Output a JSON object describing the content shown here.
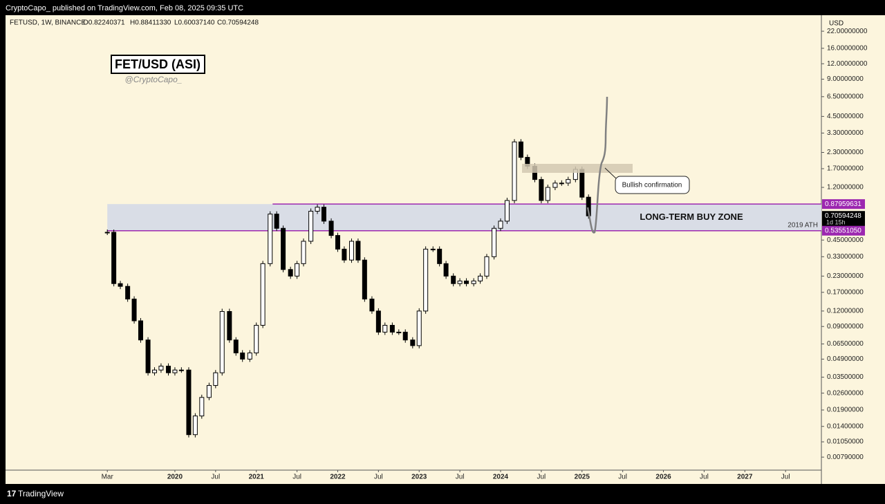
{
  "header": {
    "publisher": "CryptoCapo_ published on TradingView.com, Feb 08, 2025 09:35 UTC"
  },
  "symbol_line": {
    "symbol": "FETUSD, 1W, BINANCE",
    "open": "O0.82240371",
    "high": "H0.88411330",
    "low": "L0.60037140",
    "close": "C0.70594248"
  },
  "chart_data": {
    "type": "candlestick",
    "title": "FET/USD (ASI)",
    "subtitle": "@CryptoCapo_",
    "currency": "USD",
    "log_scale": true,
    "up_color": "#ffffff",
    "down_color": "#000000",
    "x": [
      2019.17,
      2019.25,
      2019.33,
      2019.42,
      2019.5,
      2019.58,
      2019.67,
      2019.75,
      2019.83,
      2019.92,
      2020,
      2020.08,
      2020.17,
      2020.25,
      2020.33,
      2020.42,
      2020.5,
      2020.58,
      2020.67,
      2020.75,
      2020.83,
      2020.92,
      2021,
      2021.08,
      2021.17,
      2021.25,
      2021.33,
      2021.42,
      2021.5,
      2021.58,
      2021.67,
      2021.75,
      2021.83,
      2021.92,
      2022,
      2022.08,
      2022.17,
      2022.25,
      2022.33,
      2022.42,
      2022.5,
      2022.58,
      2022.67,
      2022.75,
      2022.83,
      2022.92,
      2023,
      2023.08,
      2023.17,
      2023.25,
      2023.33,
      2023.42,
      2023.5,
      2023.58,
      2023.67,
      2023.75,
      2023.83,
      2023.92,
      2024,
      2024.08,
      2024.17,
      2024.25,
      2024.33,
      2024.42,
      2024.5,
      2024.58,
      2024.67,
      2024.75,
      2024.83,
      2024.92,
      2025,
      2025.08
    ],
    "values": [
      0.52,
      0.2,
      0.19,
      0.15,
      0.1,
      0.07,
      0.038,
      0.04,
      0.043,
      0.038,
      0.04,
      0.04,
      0.012,
      0.017,
      0.024,
      0.03,
      0.038,
      0.119,
      0.07,
      0.055,
      0.049,
      0.055,
      0.092,
      0.29,
      0.73,
      0.56,
      0.26,
      0.23,
      0.29,
      0.44,
      0.77,
      0.83,
      0.64,
      0.49,
      0.38,
      0.31,
      0.44,
      0.31,
      0.15,
      0.12,
      0.081,
      0.092,
      0.081,
      0.081,
      0.07,
      0.063,
      0.12,
      0.38,
      0.38,
      0.29,
      0.23,
      0.2,
      0.21,
      0.2,
      0.21,
      0.23,
      0.33,
      0.56,
      0.64,
      0.94,
      2.8,
      2.1,
      1.78,
      1.39,
      0.94,
      1.2,
      1.3,
      1.3,
      1.39,
      1.68,
      1.0,
      0.70594248
    ],
    "last_price_timer": "1d 15h",
    "xlim": [
      2017.92,
      2027.94
    ],
    "ylim": [
      0.0062,
      23.5
    ],
    "xticks": [
      {
        "value": 2019.17,
        "label": "Mar"
      },
      {
        "value": 2020,
        "label": "2020"
      },
      {
        "value": 2020.5,
        "label": "Jul"
      },
      {
        "value": 2021,
        "label": "2021"
      },
      {
        "value": 2021.5,
        "label": "Jul"
      },
      {
        "value": 2022,
        "label": "2022"
      },
      {
        "value": 2022.5,
        "label": "Jul"
      },
      {
        "value": 2023,
        "label": "2023"
      },
      {
        "value": 2023.5,
        "label": "Jul"
      },
      {
        "value": 2024,
        "label": "2024"
      },
      {
        "value": 2024.5,
        "label": "Jul"
      },
      {
        "value": 2025,
        "label": "2025"
      },
      {
        "value": 2025.5,
        "label": "Jul"
      },
      {
        "value": 2026,
        "label": "2026"
      },
      {
        "value": 2026.5,
        "label": "Jul"
      },
      {
        "value": 2027,
        "label": "2027"
      },
      {
        "value": 2027.5,
        "label": "Jul"
      }
    ],
    "yticks": [
      {
        "value": 22,
        "label": "22.00000000"
      },
      {
        "value": 16,
        "label": "16.00000000"
      },
      {
        "value": 12,
        "label": "12.00000000"
      },
      {
        "value": 9,
        "label": "9.00000000"
      },
      {
        "value": 6.5,
        "label": "6.50000000"
      },
      {
        "value": 4.5,
        "label": "4.50000000"
      },
      {
        "value": 3.3,
        "label": "3.30000000"
      },
      {
        "value": 2.3,
        "label": "2.30000000"
      },
      {
        "value": 1.7,
        "label": "1.70000000"
      },
      {
        "value": 1.2,
        "label": "1.20000000"
      },
      {
        "value": 0.45,
        "label": "0.45000000"
      },
      {
        "value": 0.33,
        "label": "0.33000000"
      },
      {
        "value": 0.23,
        "label": "0.23000000"
      },
      {
        "value": 0.17,
        "label": "0.17000000"
      },
      {
        "value": 0.12,
        "label": "0.12000000"
      },
      {
        "value": 0.09,
        "label": "0.09000000"
      },
      {
        "value": 0.065,
        "label": "0.06500000"
      },
      {
        "value": 0.049,
        "label": "0.04900000"
      },
      {
        "value": 0.035,
        "label": "0.03500000"
      },
      {
        "value": 0.026,
        "label": "0.02600000"
      },
      {
        "value": 0.019,
        "label": "0.01900000"
      },
      {
        "value": 0.014,
        "label": "0.01400000"
      },
      {
        "value": 0.0105,
        "label": "0.01050000"
      },
      {
        "value": 0.0079,
        "label": "0.00790000"
      }
    ],
    "zone": {
      "label": "LONG-TERM BUY ZONE",
      "color": "#9c27b0",
      "fill": "#d9dde6",
      "upper": {
        "value": 0.87959631,
        "label": "0.87959631"
      },
      "lower": {
        "value": 0.5355105,
        "label": "0.53551050"
      },
      "lower_note": "2019 ATH"
    },
    "annotation": "Bullish confirmation"
  },
  "footer": {
    "brand": "TradingView"
  }
}
